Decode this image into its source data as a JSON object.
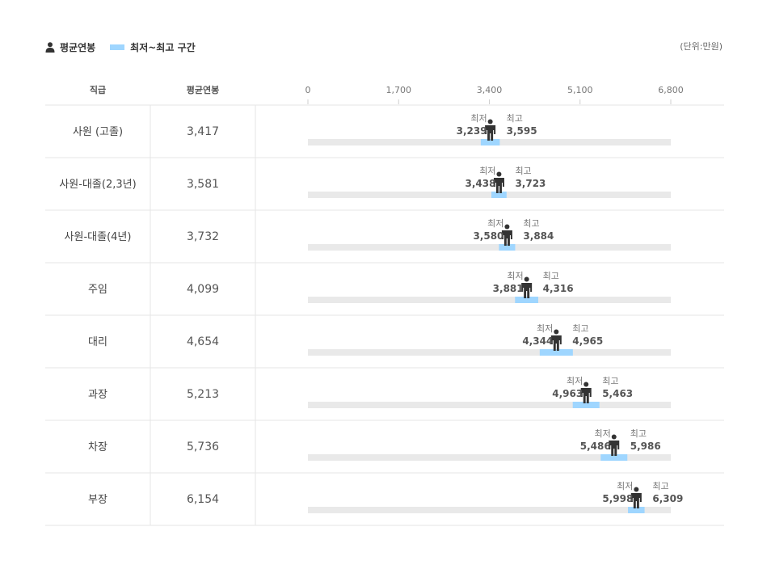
{
  "legend": {
    "average_label": "평균연봉",
    "range_label": "최저~최고 구간",
    "unit": "(단위:만원)"
  },
  "colors": {
    "track": "#e9e9e9",
    "range": "#9fd6ff",
    "person": "#333333",
    "divider": "#e6e6e6"
  },
  "chart_data": {
    "type": "bar",
    "column_headers": {
      "rank": "직급",
      "average": "평균연봉"
    },
    "xlim": [
      0,
      6800
    ],
    "ticks": [
      0,
      1700,
      3400,
      5100,
      6800
    ],
    "tick_labels": [
      "0",
      "1,700",
      "3,400",
      "5,100",
      "6,800"
    ],
    "min_label": "최저",
    "max_label": "최고",
    "rows": [
      {
        "rank": "사원 (고졸)",
        "average": 3417,
        "average_label": "3,417",
        "min": 3239,
        "min_label": "3,239",
        "max": 3595,
        "max_label": "3,595"
      },
      {
        "rank": "사원-대졸(2,3년)",
        "average": 3581,
        "average_label": "3,581",
        "min": 3438,
        "min_label": "3,438",
        "max": 3723,
        "max_label": "3,723"
      },
      {
        "rank": "사원-대졸(4년)",
        "average": 3732,
        "average_label": "3,732",
        "min": 3580,
        "min_label": "3,580",
        "max": 3884,
        "max_label": "3,884"
      },
      {
        "rank": "주임",
        "average": 4099,
        "average_label": "4,099",
        "min": 3881,
        "min_label": "3,881",
        "max": 4316,
        "max_label": "4,316"
      },
      {
        "rank": "대리",
        "average": 4654,
        "average_label": "4,654",
        "min": 4344,
        "min_label": "4,344",
        "max": 4965,
        "max_label": "4,965"
      },
      {
        "rank": "과장",
        "average": 5213,
        "average_label": "5,213",
        "min": 4963,
        "min_label": "4,963",
        "max": 5463,
        "max_label": "5,463"
      },
      {
        "rank": "차장",
        "average": 5736,
        "average_label": "5,736",
        "min": 5486,
        "min_label": "5,486",
        "max": 5986,
        "max_label": "5,986"
      },
      {
        "rank": "부장",
        "average": 6154,
        "average_label": "6,154",
        "min": 5998,
        "min_label": "5,998",
        "max": 6309,
        "max_label": "6,309"
      }
    ]
  }
}
